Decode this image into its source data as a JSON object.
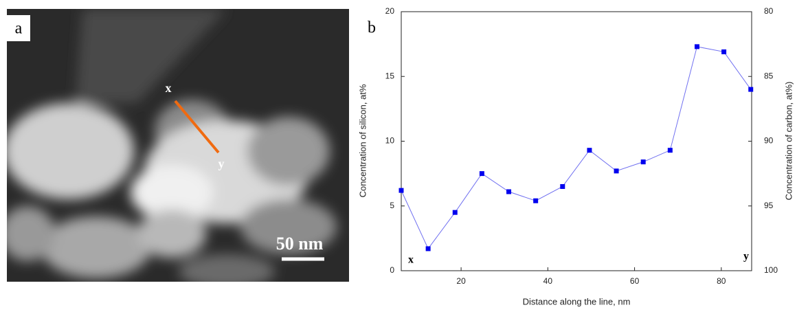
{
  "panel_a": {
    "label": "a",
    "marker_start": "x",
    "marker_end": "y",
    "scale_bar": "50 nm"
  },
  "chart_data": {
    "type": "line",
    "panel_label": "b",
    "x_label": "Distance along the line, nm",
    "y_label": "Concentration of silicon, at%",
    "y2_label": "Concentration of carbon, at%)",
    "annotations": [
      "x",
      "y"
    ],
    "x": [
      6.2,
      12.4,
      18.6,
      24.8,
      31,
      37.2,
      43.4,
      49.6,
      55.8,
      62,
      68.2,
      74.4,
      80.6,
      86.8
    ],
    "series": [
      {
        "color": "#0000ee",
        "line_color": "#6f6ff0",
        "values": [
          6.2,
          1.7,
          4.5,
          7.5,
          6.1,
          5.4,
          6.5,
          9.3,
          7.7,
          8.4,
          9.3,
          17.3,
          16.9,
          14.0
        ]
      }
    ],
    "xlim": [
      6.2,
      87
    ],
    "xticks": [
      20,
      40,
      60,
      80
    ],
    "ylim": [
      0,
      20
    ],
    "yticks": [
      0,
      5,
      10,
      15,
      20
    ],
    "y2lim": [
      100,
      80
    ],
    "y2ticks": [
      80,
      85,
      90,
      95,
      100
    ]
  }
}
